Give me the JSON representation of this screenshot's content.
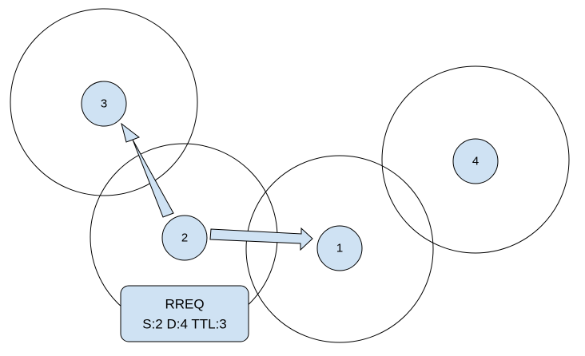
{
  "colors": {
    "node_fill": "#cfe2f3",
    "arrow_fill": "#cfe2f3",
    "box_fill": "#cfe2f3",
    "stroke": "#000000"
  },
  "nodes": [
    {
      "label": "1"
    },
    {
      "label": "2"
    },
    {
      "label": "3"
    },
    {
      "label": "4"
    }
  ],
  "arrows": [
    {
      "from": "2",
      "to": "3"
    },
    {
      "from": "2",
      "to": "1"
    }
  ],
  "packet": {
    "line1": "RREQ",
    "line2": "S:2 D:4 TTL:3"
  }
}
